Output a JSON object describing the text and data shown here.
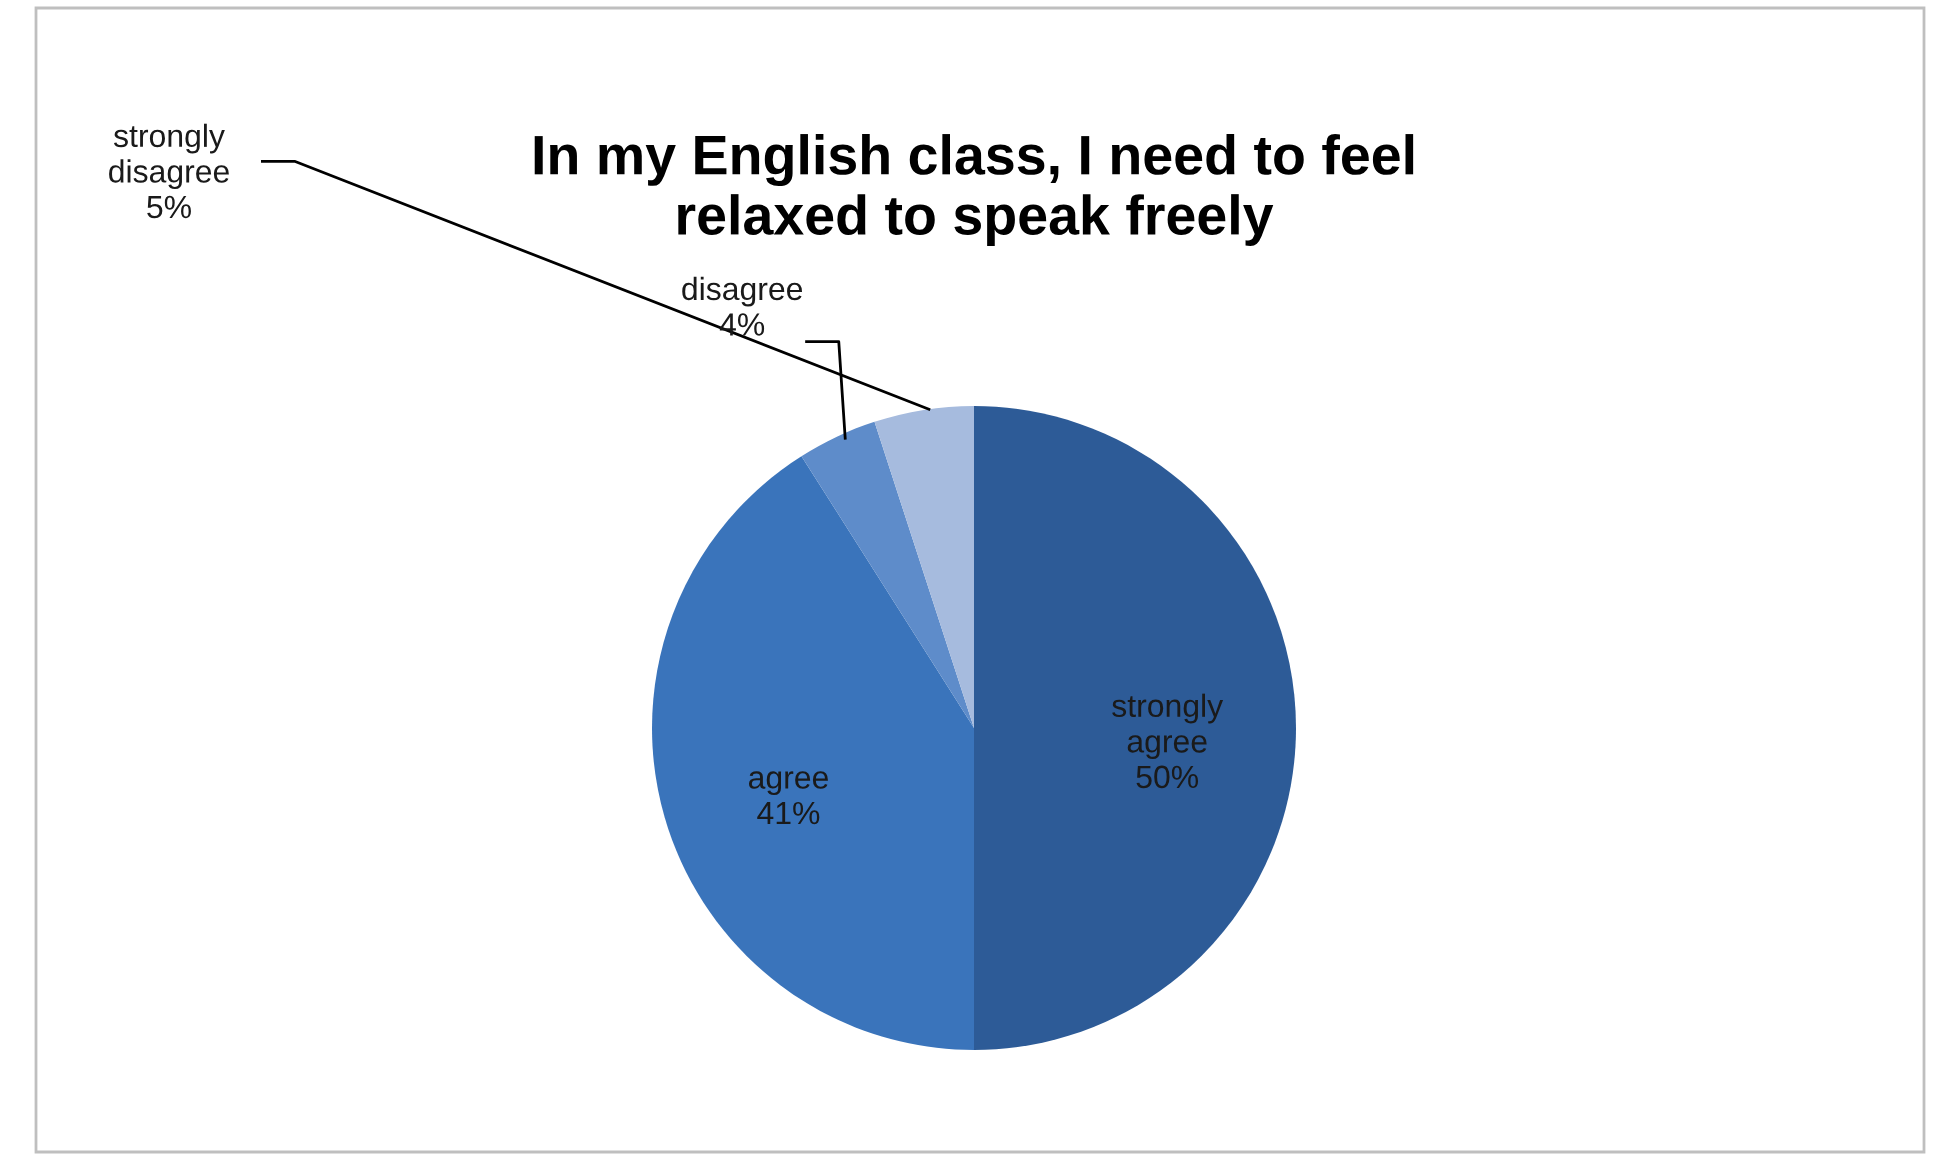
{
  "chart_data": {
    "type": "pie",
    "title": "In my English class, I need to feel\nrelaxed to speak freely",
    "categories": [
      "strongly agree",
      "agree",
      "disagree",
      "strongly disagree"
    ],
    "values": [
      50,
      41,
      4,
      5
    ],
    "value_labels": [
      "50%",
      "41%",
      "4%",
      "5%"
    ],
    "colors": [
      "#2d5b97",
      "#3a74bb",
      "#5e8cca",
      "#a6bbde"
    ],
    "legend": false
  }
}
